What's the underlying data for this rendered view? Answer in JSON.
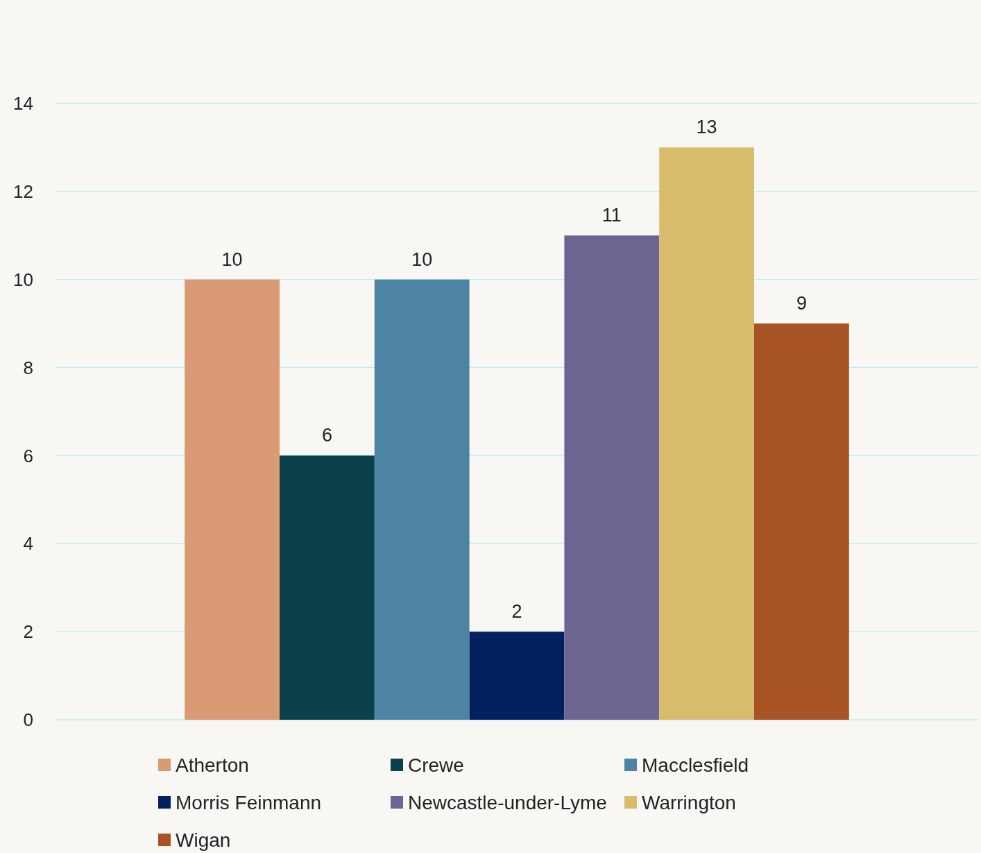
{
  "chart_data": {
    "type": "bar",
    "categories": [
      null
    ],
    "series": [
      {
        "name": "Atherton",
        "color": "#d99a74",
        "values": [
          10
        ]
      },
      {
        "name": "Crewe",
        "color": "#0b414a",
        "values": [
          6
        ]
      },
      {
        "name": "Macclesfield",
        "color": "#4d84a3",
        "values": [
          10
        ]
      },
      {
        "name": "Morris Feinmann",
        "color": "#03215e",
        "values": [
          2
        ]
      },
      {
        "name": "Newcastle-under-Lyme",
        "color": "#6c6592",
        "values": [
          11
        ]
      },
      {
        "name": "Warrington",
        "color": "#d8bc6c",
        "values": [
          13
        ]
      },
      {
        "name": "Wigan",
        "color": "#a85324",
        "values": [
          9
        ]
      }
    ],
    "ylim": [
      0,
      14
    ],
    "yticks": [
      0,
      2,
      4,
      6,
      8,
      10,
      12,
      14
    ],
    "grid": "y",
    "legend": "bottom",
    "data_labels": true
  }
}
